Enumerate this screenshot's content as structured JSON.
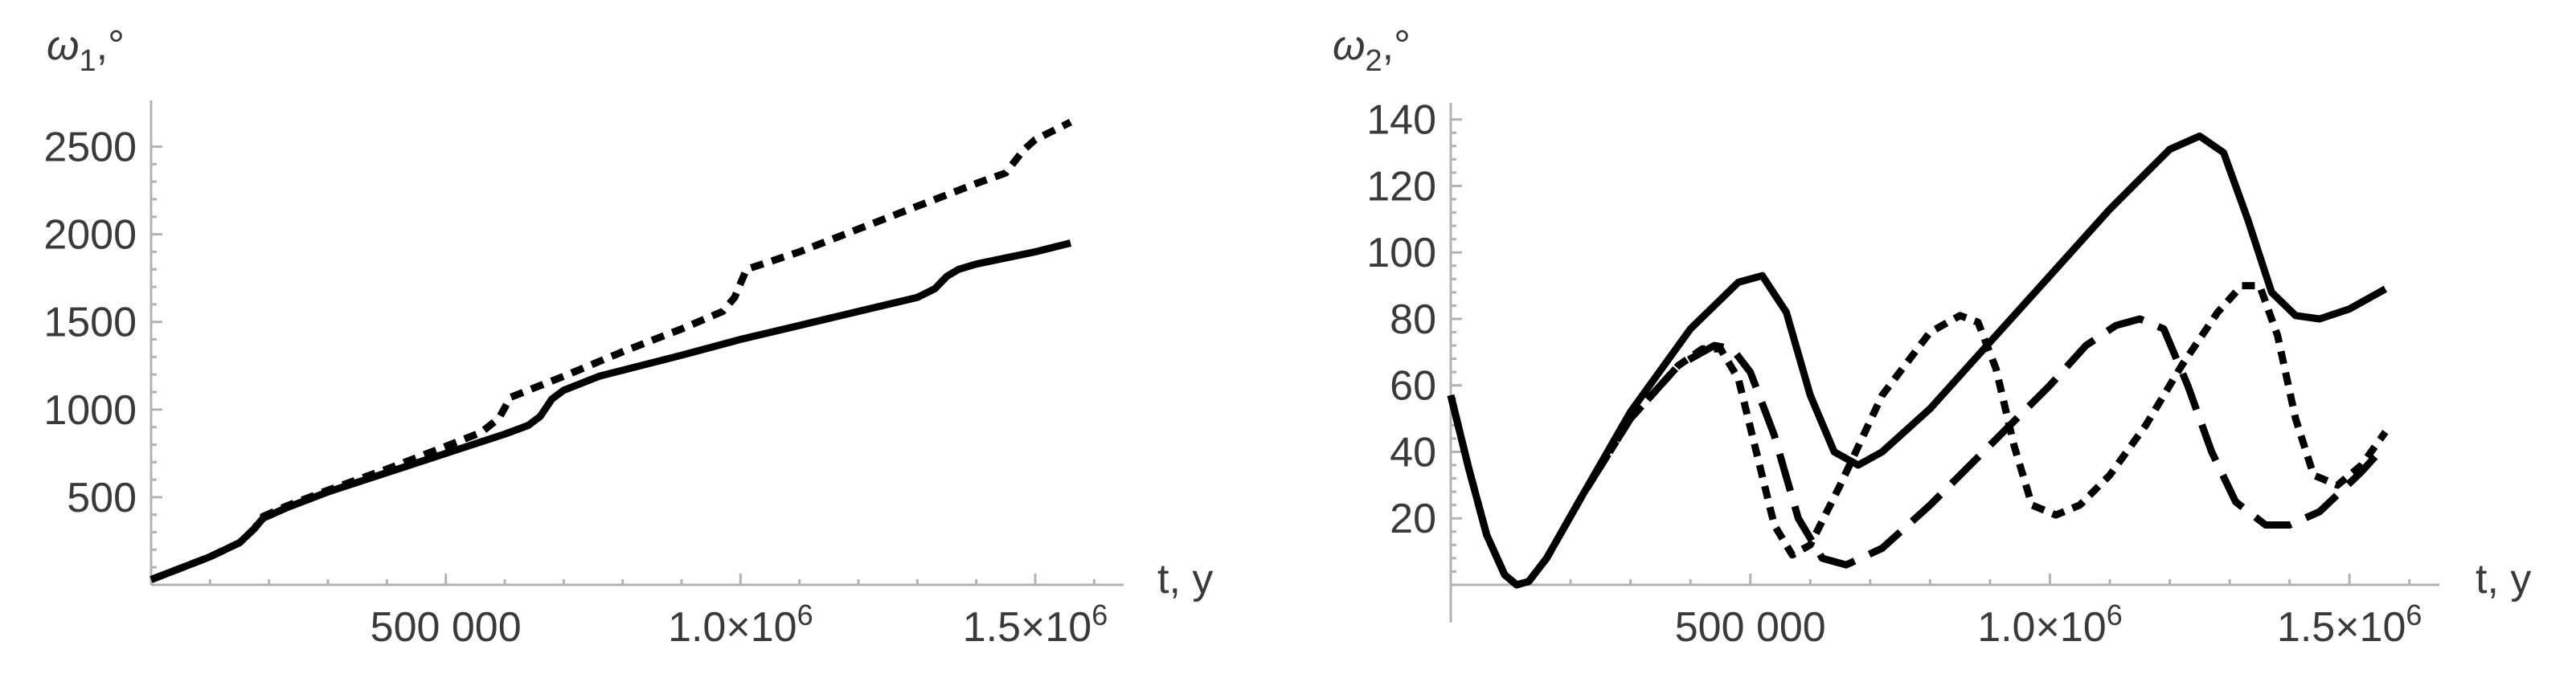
{
  "chart_data": [
    {
      "type": "line",
      "title": "",
      "ylabel_main": "ω",
      "ylabel_sub": "1",
      "ylabel_unit": ",°",
      "xlabel": "t, y",
      "xlim": [
        0,
        1650000
      ],
      "ylim": [
        0,
        2750
      ],
      "x_ticks": [
        {
          "value": 500000,
          "label": "500 000"
        },
        {
          "value": 1000000,
          "label": "1.0",
          "exp": "6"
        },
        {
          "value": 1500000,
          "label": "1.5",
          "exp": "6"
        }
      ],
      "y_ticks": [
        {
          "value": 500,
          "label": "500"
        },
        {
          "value": 1000,
          "label": "1000"
        },
        {
          "value": 1500,
          "label": "1500"
        },
        {
          "value": 2000,
          "label": "2000"
        },
        {
          "value": 2500,
          "label": "2500"
        }
      ],
      "series": [
        {
          "style": "solid",
          "x": [
            0,
            100000,
            150000,
            175000,
            190000,
            230000,
            300000,
            400000,
            500000,
            600000,
            640000,
            660000,
            680000,
            700000,
            760000,
            900000,
            1000000,
            1100000,
            1200000,
            1300000,
            1330000,
            1350000,
            1370000,
            1400000,
            1500000,
            1560000
          ],
          "y": [
            30,
            160,
            240,
            320,
            380,
            440,
            530,
            640,
            750,
            860,
            910,
            960,
            1060,
            1110,
            1190,
            1310,
            1400,
            1480,
            1560,
            1640,
            1690,
            1760,
            1800,
            1830,
            1900,
            1950
          ]
        },
        {
          "style": "dotted",
          "x": [
            0,
            100000,
            150000,
            175000,
            190000,
            230000,
            300000,
            400000,
            500000,
            560000,
            590000,
            610000,
            700000,
            800000,
            900000,
            970000,
            990000,
            1010000,
            1100000,
            1200000,
            1300000,
            1400000,
            1450000,
            1480000,
            1500000,
            1560000
          ],
          "y": [
            30,
            160,
            240,
            320,
            390,
            450,
            540,
            660,
            790,
            870,
            950,
            1070,
            1190,
            1330,
            1460,
            1560,
            1640,
            1800,
            1900,
            2030,
            2160,
            2290,
            2350,
            2480,
            2540,
            2640
          ]
        }
      ]
    },
    {
      "type": "line",
      "title": "",
      "ylabel_main": "ω",
      "ylabel_sub": "2",
      "ylabel_unit": ",°",
      "xlabel": "t, y",
      "xlim": [
        0,
        1650000
      ],
      "ylim": [
        -10,
        145
      ],
      "x_ticks": [
        {
          "value": 500000,
          "label": "500 000"
        },
        {
          "value": 1000000,
          "label": "1.0",
          "exp": "6"
        },
        {
          "value": 1500000,
          "label": "1.5",
          "exp": "6"
        }
      ],
      "y_ticks": [
        {
          "value": 20,
          "label": "20"
        },
        {
          "value": 40,
          "label": "40"
        },
        {
          "value": 60,
          "label": "60"
        },
        {
          "value": 80,
          "label": "80"
        },
        {
          "value": 100,
          "label": "100"
        },
        {
          "value": 120,
          "label": "120"
        },
        {
          "value": 140,
          "label": "140"
        }
      ],
      "series": [
        {
          "style": "solid",
          "x": [
            0,
            30000,
            60000,
            90000,
            110000,
            130000,
            160000,
            220000,
            300000,
            400000,
            480000,
            520000,
            560000,
            600000,
            640000,
            680000,
            720000,
            800000,
            900000,
            1000000,
            1100000,
            1200000,
            1250000,
            1290000,
            1330000,
            1370000,
            1410000,
            1450000,
            1500000,
            1560000
          ],
          "y": [
            57,
            35,
            15,
            3,
            0,
            1,
            8,
            27,
            52,
            77,
            91,
            93,
            82,
            57,
            40,
            36,
            40,
            53,
            73,
            93,
            113,
            131,
            135,
            130,
            110,
            88,
            81,
            80,
            83,
            89
          ]
        },
        {
          "style": "dashed",
          "x": [
            0,
            30000,
            60000,
            90000,
            110000,
            130000,
            160000,
            220000,
            300000,
            380000,
            440000,
            470000,
            500000,
            540000,
            580000,
            620000,
            660000,
            720000,
            800000,
            900000,
            1000000,
            1060000,
            1110000,
            1150000,
            1190000,
            1230000,
            1270000,
            1310000,
            1360000,
            1400000,
            1450000,
            1520000,
            1560000
          ],
          "y": [
            57,
            35,
            15,
            3,
            0,
            1,
            8,
            27,
            50,
            66,
            72,
            71,
            64,
            45,
            20,
            8,
            6,
            11,
            24,
            42,
            60,
            72,
            78,
            80,
            77,
            60,
            40,
            25,
            18,
            18,
            22,
            34,
            42
          ]
        },
        {
          "style": "dotted",
          "x": [
            0,
            30000,
            60000,
            90000,
            110000,
            130000,
            160000,
            220000,
            300000,
            380000,
            420000,
            450000,
            480000,
            510000,
            540000,
            570000,
            600000,
            650000,
            720000,
            800000,
            850000,
            880000,
            910000,
            940000,
            970000,
            1010000,
            1050000,
            1100000,
            1160000,
            1220000,
            1280000,
            1320000,
            1350000,
            1380000,
            1410000,
            1440000,
            1480000,
            1520000,
            1560000
          ],
          "y": [
            57,
            35,
            15,
            3,
            0,
            1,
            8,
            27,
            50,
            66,
            71,
            71,
            62,
            40,
            18,
            9,
            12,
            30,
            57,
            76,
            81,
            79,
            65,
            42,
            24,
            21,
            24,
            33,
            48,
            66,
            82,
            90,
            90,
            75,
            50,
            33,
            30,
            36,
            46
          ]
        }
      ]
    }
  ]
}
